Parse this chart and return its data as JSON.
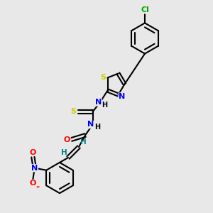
{
  "background_color": "#e8e8e8",
  "bond_color": "#000000",
  "atom_colors": {
    "S": "#cccc00",
    "N": "#0000ff",
    "O": "#ff0000",
    "Cl": "#00aa00",
    "H_vinyl": "#008080",
    "H": "#000000",
    "C": "#000000"
  },
  "title": "",
  "figsize": [
    3.0,
    3.0
  ],
  "dpi": 100
}
